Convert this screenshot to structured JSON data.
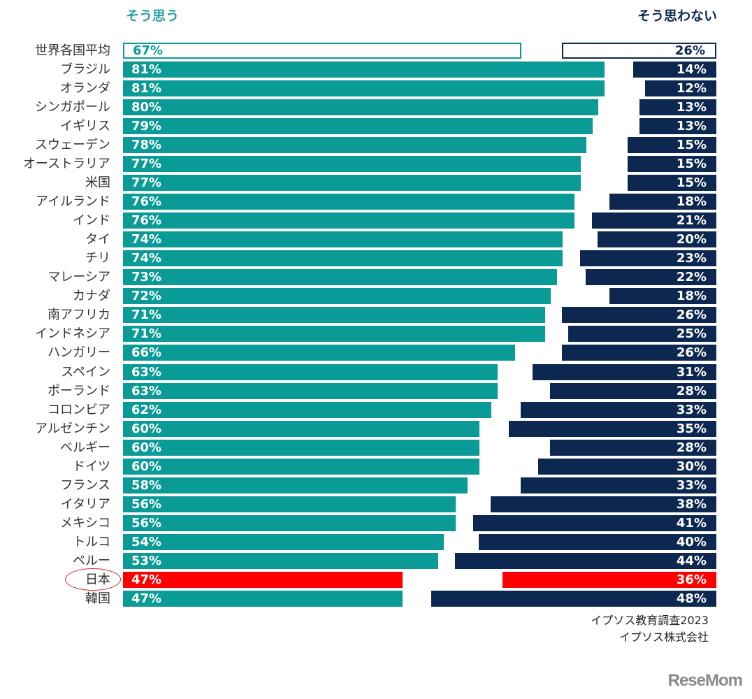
{
  "chart_data": {
    "type": "bar",
    "orientation": "horizontal-diverging",
    "series": [
      {
        "name": "そう思う",
        "values": [
          67,
          81,
          81,
          80,
          79,
          78,
          77,
          77,
          76,
          76,
          74,
          74,
          73,
          72,
          71,
          71,
          66,
          63,
          63,
          62,
          60,
          60,
          60,
          58,
          56,
          56,
          54,
          53,
          47,
          47
        ]
      },
      {
        "name": "そう思わない",
        "values": [
          26,
          14,
          12,
          13,
          13,
          15,
          15,
          15,
          18,
          21,
          20,
          23,
          22,
          18,
          26,
          25,
          26,
          31,
          28,
          33,
          35,
          28,
          30,
          33,
          38,
          41,
          40,
          44,
          36,
          48
        ]
      }
    ],
    "categories": [
      "世界各国平均",
      "ブラジル",
      "オランダ",
      "シンガポール",
      "イギリス",
      "スウェーデン",
      "オーストラリア",
      "米国",
      "アイルランド",
      "インド",
      "タイ",
      "チリ",
      "マレーシア",
      "カナダ",
      "南アフリカ",
      "インドネシア",
      "ハンガリー",
      "スペイン",
      "ポーランド",
      "コロンビア",
      "アルゼンチン",
      "ベルギー",
      "ドイツ",
      "フランス",
      "イタリア",
      "メキシコ",
      "トルコ",
      "ペルー",
      "日本",
      "韓国"
    ],
    "highlight": "日本",
    "average_category": "世界各国平均",
    "unit": "%",
    "colors": {
      "agree": "#0a9b96",
      "disagree": "#0c2851",
      "highlight": "#ff0000",
      "agree_header": "#2a9ea0"
    }
  },
  "headers": {
    "left": "そう思う",
    "right": "そう思わない"
  },
  "source": {
    "line1": "イプソス教育調査2023",
    "line2": "イプソス株式会社"
  },
  "watermark": "ReseMom"
}
